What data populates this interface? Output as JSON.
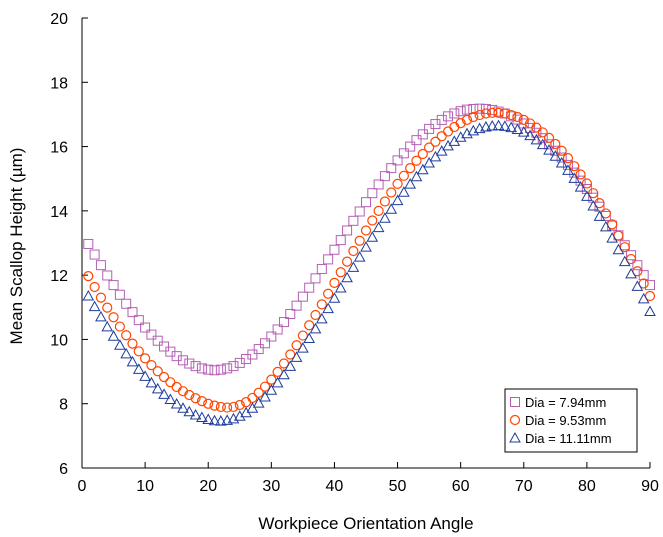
{
  "chart_data": {
    "type": "scatter",
    "xlabel": "Workpiece Orientation Angle",
    "ylabel": "Mean Scallop Height (µm)",
    "xlim": [
      0,
      90
    ],
    "ylim": [
      6,
      20
    ],
    "xticks": [
      0,
      10,
      20,
      30,
      40,
      50,
      60,
      70,
      80,
      90
    ],
    "yticks": [
      6,
      8,
      10,
      12,
      14,
      16,
      18,
      20
    ],
    "grid": false,
    "legend_position": "bottom-right",
    "x": [
      1,
      2,
      3,
      4,
      5,
      6,
      7,
      8,
      9,
      10,
      11,
      12,
      13,
      14,
      15,
      16,
      17,
      18,
      19,
      20,
      21,
      22,
      23,
      24,
      25,
      26,
      27,
      28,
      29,
      30,
      31,
      32,
      33,
      34,
      35,
      36,
      37,
      38,
      39,
      40,
      41,
      42,
      43,
      44,
      45,
      46,
      47,
      48,
      49,
      50,
      51,
      52,
      53,
      54,
      55,
      56,
      57,
      58,
      59,
      60,
      61,
      62,
      63,
      64,
      65,
      66,
      67,
      68,
      69,
      70,
      71,
      72,
      73,
      74,
      75,
      76,
      77,
      78,
      79,
      80,
      81,
      82,
      83,
      84,
      85,
      86,
      87,
      88,
      89,
      90
    ],
    "series": [
      {
        "name": "Dia = 7.94mm",
        "marker": "square",
        "color": "#b45fb4",
        "values": [
          12.97,
          12.64,
          12.31,
          11.99,
          11.69,
          11.39,
          11.11,
          10.85,
          10.6,
          10.37,
          10.15,
          9.96,
          9.78,
          9.62,
          9.48,
          9.35,
          9.25,
          9.17,
          9.1,
          9.06,
          9.04,
          9.06,
          9.1,
          9.17,
          9.27,
          9.39,
          9.53,
          9.7,
          9.88,
          10.09,
          10.31,
          10.54,
          10.79,
          11.05,
          11.33,
          11.61,
          11.9,
          12.19,
          12.49,
          12.79,
          13.09,
          13.39,
          13.69,
          13.98,
          14.27,
          14.55,
          14.82,
          15.08,
          15.33,
          15.57,
          15.79,
          16.0,
          16.2,
          16.38,
          16.55,
          16.7,
          16.83,
          16.94,
          17.03,
          17.1,
          17.15,
          17.17,
          17.18,
          17.17,
          17.14,
          17.09,
          17.03,
          16.94,
          16.84,
          16.72,
          16.58,
          16.43,
          16.26,
          16.07,
          15.87,
          15.66,
          15.43,
          15.19,
          14.94,
          14.68,
          14.41,
          14.13,
          13.84,
          13.54,
          13.24,
          12.93,
          12.62,
          12.31,
          12.0,
          11.69
        ]
      },
      {
        "name": "Dia = 9.53mm",
        "marker": "circle",
        "color": "#ff4500",
        "values": [
          11.97,
          11.63,
          11.3,
          10.99,
          10.69,
          10.4,
          10.13,
          9.87,
          9.63,
          9.41,
          9.2,
          9.01,
          8.83,
          8.67,
          8.52,
          8.39,
          8.27,
          8.17,
          8.08,
          8.0,
          7.94,
          7.9,
          7.88,
          7.9,
          7.96,
          8.05,
          8.18,
          8.34,
          8.53,
          8.75,
          8.99,
          9.25,
          9.53,
          9.82,
          10.12,
          10.44,
          10.76,
          11.09,
          11.42,
          11.76,
          12.09,
          12.42,
          12.75,
          13.07,
          13.39,
          13.7,
          14.0,
          14.29,
          14.57,
          14.84,
          15.09,
          15.33,
          15.56,
          15.77,
          15.97,
          16.15,
          16.32,
          16.47,
          16.61,
          16.73,
          16.83,
          16.92,
          16.98,
          17.03,
          17.05,
          17.05,
          17.03,
          16.98,
          16.92,
          16.83,
          16.72,
          16.59,
          16.44,
          16.27,
          16.08,
          15.87,
          15.64,
          15.39,
          15.13,
          14.85,
          14.55,
          14.24,
          13.92,
          13.58,
          13.23,
          12.87,
          12.5,
          12.12,
          11.74,
          11.35
        ]
      },
      {
        "name": "Dia = 11.11mm",
        "marker": "triangle",
        "color": "#1e3c9c",
        "values": [
          11.35,
          11.02,
          10.7,
          10.39,
          10.1,
          9.82,
          9.55,
          9.3,
          9.07,
          8.85,
          8.65,
          8.46,
          8.29,
          8.13,
          7.99,
          7.86,
          7.75,
          7.65,
          7.57,
          7.51,
          7.47,
          7.46,
          7.48,
          7.53,
          7.61,
          7.72,
          7.86,
          8.02,
          8.21,
          8.42,
          8.65,
          8.9,
          9.16,
          9.44,
          9.73,
          10.03,
          10.33,
          10.64,
          10.96,
          11.28,
          11.6,
          11.92,
          12.24,
          12.56,
          12.87,
          13.18,
          13.48,
          13.77,
          14.05,
          14.32,
          14.58,
          14.83,
          15.06,
          15.28,
          15.49,
          15.68,
          15.86,
          16.02,
          16.16,
          16.29,
          16.4,
          16.49,
          16.56,
          16.61,
          16.64,
          16.65,
          16.63,
          16.59,
          16.53,
          16.45,
          16.34,
          16.21,
          16.06,
          15.89,
          15.7,
          15.49,
          15.26,
          15.01,
          14.74,
          14.45,
          14.15,
          13.83,
          13.5,
          13.15,
          12.79,
          12.42,
          12.04,
          11.65,
          11.26,
          10.87
        ]
      }
    ]
  }
}
